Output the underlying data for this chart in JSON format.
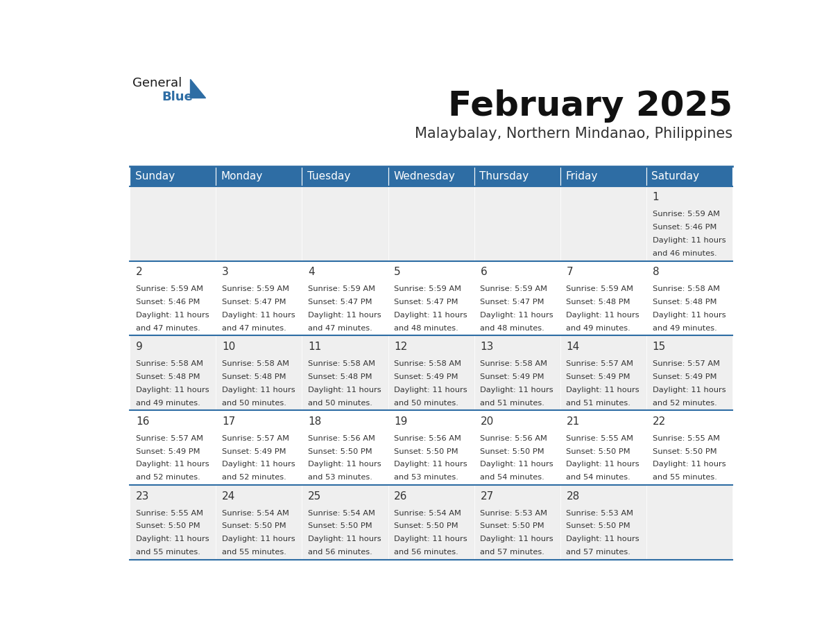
{
  "title": "February 2025",
  "subtitle": "Malaybalay, Northern Mindanao, Philippines",
  "days_of_week": [
    "Sunday",
    "Monday",
    "Tuesday",
    "Wednesday",
    "Thursday",
    "Friday",
    "Saturday"
  ],
  "header_bg": "#2E6DA4",
  "header_text": "#FFFFFF",
  "cell_bg_odd": "#EFEFEF",
  "cell_bg_even": "#FFFFFF",
  "cell_border": "#2E6DA4",
  "day_number_color": "#333333",
  "info_text_color": "#333333",
  "title_color": "#111111",
  "subtitle_color": "#333333",
  "logo_general_color": "#1A1A1A",
  "logo_blue_color": "#2E6DA4",
  "calendar_data": [
    [
      null,
      null,
      null,
      null,
      null,
      null,
      {
        "day": "1",
        "sunrise": "5:59 AM",
        "sunset": "5:46 PM",
        "daylight_line1": "Daylight: 11 hours",
        "daylight_line2": "and 46 minutes."
      }
    ],
    [
      {
        "day": "2",
        "sunrise": "5:59 AM",
        "sunset": "5:46 PM",
        "daylight_line1": "Daylight: 11 hours",
        "daylight_line2": "and 47 minutes."
      },
      {
        "day": "3",
        "sunrise": "5:59 AM",
        "sunset": "5:47 PM",
        "daylight_line1": "Daylight: 11 hours",
        "daylight_line2": "and 47 minutes."
      },
      {
        "day": "4",
        "sunrise": "5:59 AM",
        "sunset": "5:47 PM",
        "daylight_line1": "Daylight: 11 hours",
        "daylight_line2": "and 47 minutes."
      },
      {
        "day": "5",
        "sunrise": "5:59 AM",
        "sunset": "5:47 PM",
        "daylight_line1": "Daylight: 11 hours",
        "daylight_line2": "and 48 minutes."
      },
      {
        "day": "6",
        "sunrise": "5:59 AM",
        "sunset": "5:47 PM",
        "daylight_line1": "Daylight: 11 hours",
        "daylight_line2": "and 48 minutes."
      },
      {
        "day": "7",
        "sunrise": "5:59 AM",
        "sunset": "5:48 PM",
        "daylight_line1": "Daylight: 11 hours",
        "daylight_line2": "and 49 minutes."
      },
      {
        "day": "8",
        "sunrise": "5:58 AM",
        "sunset": "5:48 PM",
        "daylight_line1": "Daylight: 11 hours",
        "daylight_line2": "and 49 minutes."
      }
    ],
    [
      {
        "day": "9",
        "sunrise": "5:58 AM",
        "sunset": "5:48 PM",
        "daylight_line1": "Daylight: 11 hours",
        "daylight_line2": "and 49 minutes."
      },
      {
        "day": "10",
        "sunrise": "5:58 AM",
        "sunset": "5:48 PM",
        "daylight_line1": "Daylight: 11 hours",
        "daylight_line2": "and 50 minutes."
      },
      {
        "day": "11",
        "sunrise": "5:58 AM",
        "sunset": "5:48 PM",
        "daylight_line1": "Daylight: 11 hours",
        "daylight_line2": "and 50 minutes."
      },
      {
        "day": "12",
        "sunrise": "5:58 AM",
        "sunset": "5:49 PM",
        "daylight_line1": "Daylight: 11 hours",
        "daylight_line2": "and 50 minutes."
      },
      {
        "day": "13",
        "sunrise": "5:58 AM",
        "sunset": "5:49 PM",
        "daylight_line1": "Daylight: 11 hours",
        "daylight_line2": "and 51 minutes."
      },
      {
        "day": "14",
        "sunrise": "5:57 AM",
        "sunset": "5:49 PM",
        "daylight_line1": "Daylight: 11 hours",
        "daylight_line2": "and 51 minutes."
      },
      {
        "day": "15",
        "sunrise": "5:57 AM",
        "sunset": "5:49 PM",
        "daylight_line1": "Daylight: 11 hours",
        "daylight_line2": "and 52 minutes."
      }
    ],
    [
      {
        "day": "16",
        "sunrise": "5:57 AM",
        "sunset": "5:49 PM",
        "daylight_line1": "Daylight: 11 hours",
        "daylight_line2": "and 52 minutes."
      },
      {
        "day": "17",
        "sunrise": "5:57 AM",
        "sunset": "5:49 PM",
        "daylight_line1": "Daylight: 11 hours",
        "daylight_line2": "and 52 minutes."
      },
      {
        "day": "18",
        "sunrise": "5:56 AM",
        "sunset": "5:50 PM",
        "daylight_line1": "Daylight: 11 hours",
        "daylight_line2": "and 53 minutes."
      },
      {
        "day": "19",
        "sunrise": "5:56 AM",
        "sunset": "5:50 PM",
        "daylight_line1": "Daylight: 11 hours",
        "daylight_line2": "and 53 minutes."
      },
      {
        "day": "20",
        "sunrise": "5:56 AM",
        "sunset": "5:50 PM",
        "daylight_line1": "Daylight: 11 hours",
        "daylight_line2": "and 54 minutes."
      },
      {
        "day": "21",
        "sunrise": "5:55 AM",
        "sunset": "5:50 PM",
        "daylight_line1": "Daylight: 11 hours",
        "daylight_line2": "and 54 minutes."
      },
      {
        "day": "22",
        "sunrise": "5:55 AM",
        "sunset": "5:50 PM",
        "daylight_line1": "Daylight: 11 hours",
        "daylight_line2": "and 55 minutes."
      }
    ],
    [
      {
        "day": "23",
        "sunrise": "5:55 AM",
        "sunset": "5:50 PM",
        "daylight_line1": "Daylight: 11 hours",
        "daylight_line2": "and 55 minutes."
      },
      {
        "day": "24",
        "sunrise": "5:54 AM",
        "sunset": "5:50 PM",
        "daylight_line1": "Daylight: 11 hours",
        "daylight_line2": "and 55 minutes."
      },
      {
        "day": "25",
        "sunrise": "5:54 AM",
        "sunset": "5:50 PM",
        "daylight_line1": "Daylight: 11 hours",
        "daylight_line2": "and 56 minutes."
      },
      {
        "day": "26",
        "sunrise": "5:54 AM",
        "sunset": "5:50 PM",
        "daylight_line1": "Daylight: 11 hours",
        "daylight_line2": "and 56 minutes."
      },
      {
        "day": "27",
        "sunrise": "5:53 AM",
        "sunset": "5:50 PM",
        "daylight_line1": "Daylight: 11 hours",
        "daylight_line2": "and 57 minutes."
      },
      {
        "day": "28",
        "sunrise": "5:53 AM",
        "sunset": "5:50 PM",
        "daylight_line1": "Daylight: 11 hours",
        "daylight_line2": "and 57 minutes."
      },
      null
    ]
  ]
}
